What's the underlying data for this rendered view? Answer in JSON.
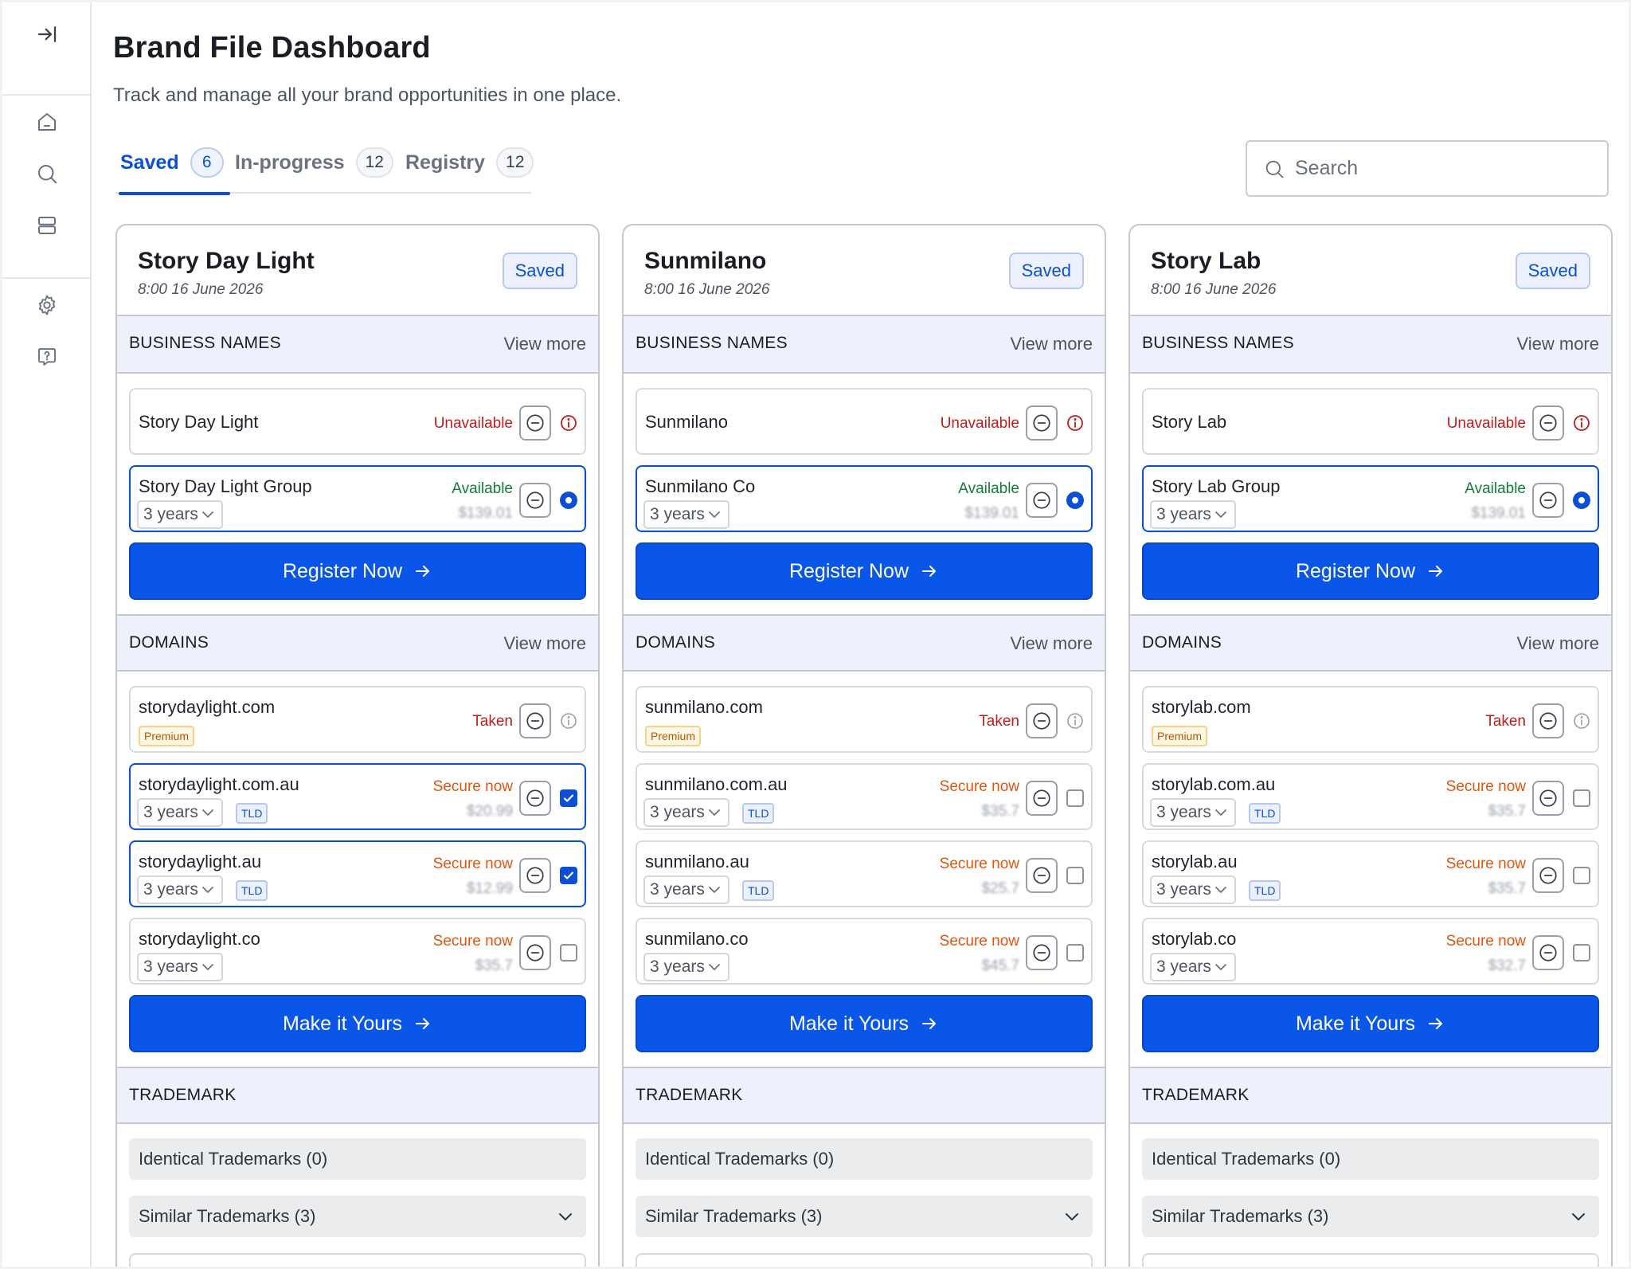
{
  "page": {
    "title": "Brand File Dashboard",
    "subtitle": "Track and manage all your brand opportunities in one place."
  },
  "sidebar": {
    "items": [
      {
        "name": "collapse",
        "icon": "expand-arrow-icon"
      },
      {
        "name": "home",
        "icon": "home-icon"
      },
      {
        "name": "search",
        "icon": "search-icon"
      },
      {
        "name": "files",
        "icon": "stack-icon"
      },
      {
        "name": "settings",
        "icon": "gear-icon"
      },
      {
        "name": "help",
        "icon": "help-bubble-icon"
      }
    ]
  },
  "tabs": [
    {
      "label": "Saved",
      "count": "6",
      "active": true
    },
    {
      "label": "In-progress",
      "count": "12",
      "active": false
    },
    {
      "label": "Registry",
      "count": "12",
      "active": false
    }
  ],
  "search": {
    "placeholder": "Search",
    "value": ""
  },
  "colors": {
    "accent": "#0a56e8",
    "unavailable": "#c11c1c",
    "available": "#137a3a",
    "secure": "#e0550f"
  },
  "cards": [
    {
      "name": "Story Day Light",
      "date": "8:00 16 June 2026",
      "badge": "Saved",
      "business": {
        "title": "BUSINESS NAMES",
        "view_more": "View more",
        "rows": [
          {
            "name": "Story Day Light",
            "status": "Unavailable"
          },
          {
            "name": "Story Day Light Group",
            "status": "Available",
            "years": "3 years",
            "price": "$139.01"
          }
        ],
        "cta": "Register Now"
      },
      "domains": {
        "title": "DOMAINS",
        "view_more": "View more",
        "rows": [
          {
            "name": "storydaylight.com",
            "status": "Taken",
            "tag": "Premium"
          },
          {
            "name": "storydaylight.com.au",
            "status": "Secure now",
            "years": "3 years",
            "tag": "TLD",
            "price": "$20.99",
            "checked": true
          },
          {
            "name": "storydaylight.au",
            "status": "Secure now",
            "years": "3 years",
            "tag": "TLD",
            "price": "$12.99",
            "checked": true
          },
          {
            "name": "storydaylight.co",
            "status": "Secure now",
            "years": "3 years",
            "price": "$35.7",
            "checked": false
          }
        ],
        "cta": "Make it Yours"
      },
      "trademark": {
        "title": "TRADEMARK",
        "identical": "Identical Trademarks (0)",
        "similar": "Similar Trademarks (3)"
      }
    },
    {
      "name": "Sunmilano",
      "date": "8:00 16 June 2026",
      "badge": "Saved",
      "business": {
        "title": "BUSINESS NAMES",
        "view_more": "View more",
        "rows": [
          {
            "name": "Sunmilano",
            "status": "Unavailable"
          },
          {
            "name": "Sunmilano Co",
            "status": "Available",
            "years": "3 years",
            "price": "$139.01"
          }
        ],
        "cta": "Register Now"
      },
      "domains": {
        "title": "DOMAINS",
        "view_more": "View more",
        "rows": [
          {
            "name": "sunmilano.com",
            "status": "Taken",
            "tag": "Premium"
          },
          {
            "name": "sunmilano.com.au",
            "status": "Secure now",
            "years": "3 years",
            "tag": "TLD",
            "price": "$35.7",
            "checked": false
          },
          {
            "name": "sunmilano.au",
            "status": "Secure now",
            "years": "3 years",
            "tag": "TLD",
            "price": "$25.7",
            "checked": false
          },
          {
            "name": "sunmilano.co",
            "status": "Secure now",
            "years": "3 years",
            "price": "$45.7",
            "checked": false
          }
        ],
        "cta": "Make it Yours"
      },
      "trademark": {
        "title": "TRADEMARK",
        "identical": "Identical Trademarks (0)",
        "similar": "Similar Trademarks (3)"
      }
    },
    {
      "name": "Story Lab",
      "date": "8:00 16 June 2026",
      "badge": "Saved",
      "business": {
        "title": "BUSINESS NAMES",
        "view_more": "View more",
        "rows": [
          {
            "name": "Story Lab",
            "status": "Unavailable"
          },
          {
            "name": "Story Lab Group",
            "status": "Available",
            "years": "3 years",
            "price": "$139.01"
          }
        ],
        "cta": "Register Now"
      },
      "domains": {
        "title": "DOMAINS",
        "view_more": "View more",
        "rows": [
          {
            "name": "storylab.com",
            "status": "Taken",
            "tag": "Premium"
          },
          {
            "name": "storylab.com.au",
            "status": "Secure now",
            "years": "3 years",
            "tag": "TLD",
            "price": "$35.7",
            "checked": false
          },
          {
            "name": "storylab.au",
            "status": "Secure now",
            "years": "3 years",
            "tag": "TLD",
            "price": "$35.7",
            "checked": false
          },
          {
            "name": "storylab.co",
            "status": "Secure now",
            "years": "3 years",
            "price": "$32.7",
            "checked": false
          }
        ],
        "cta": "Make it Yours"
      },
      "trademark": {
        "title": "TRADEMARK",
        "identical": "Identical Trademarks (0)",
        "similar": "Similar Trademarks (3)"
      }
    }
  ]
}
